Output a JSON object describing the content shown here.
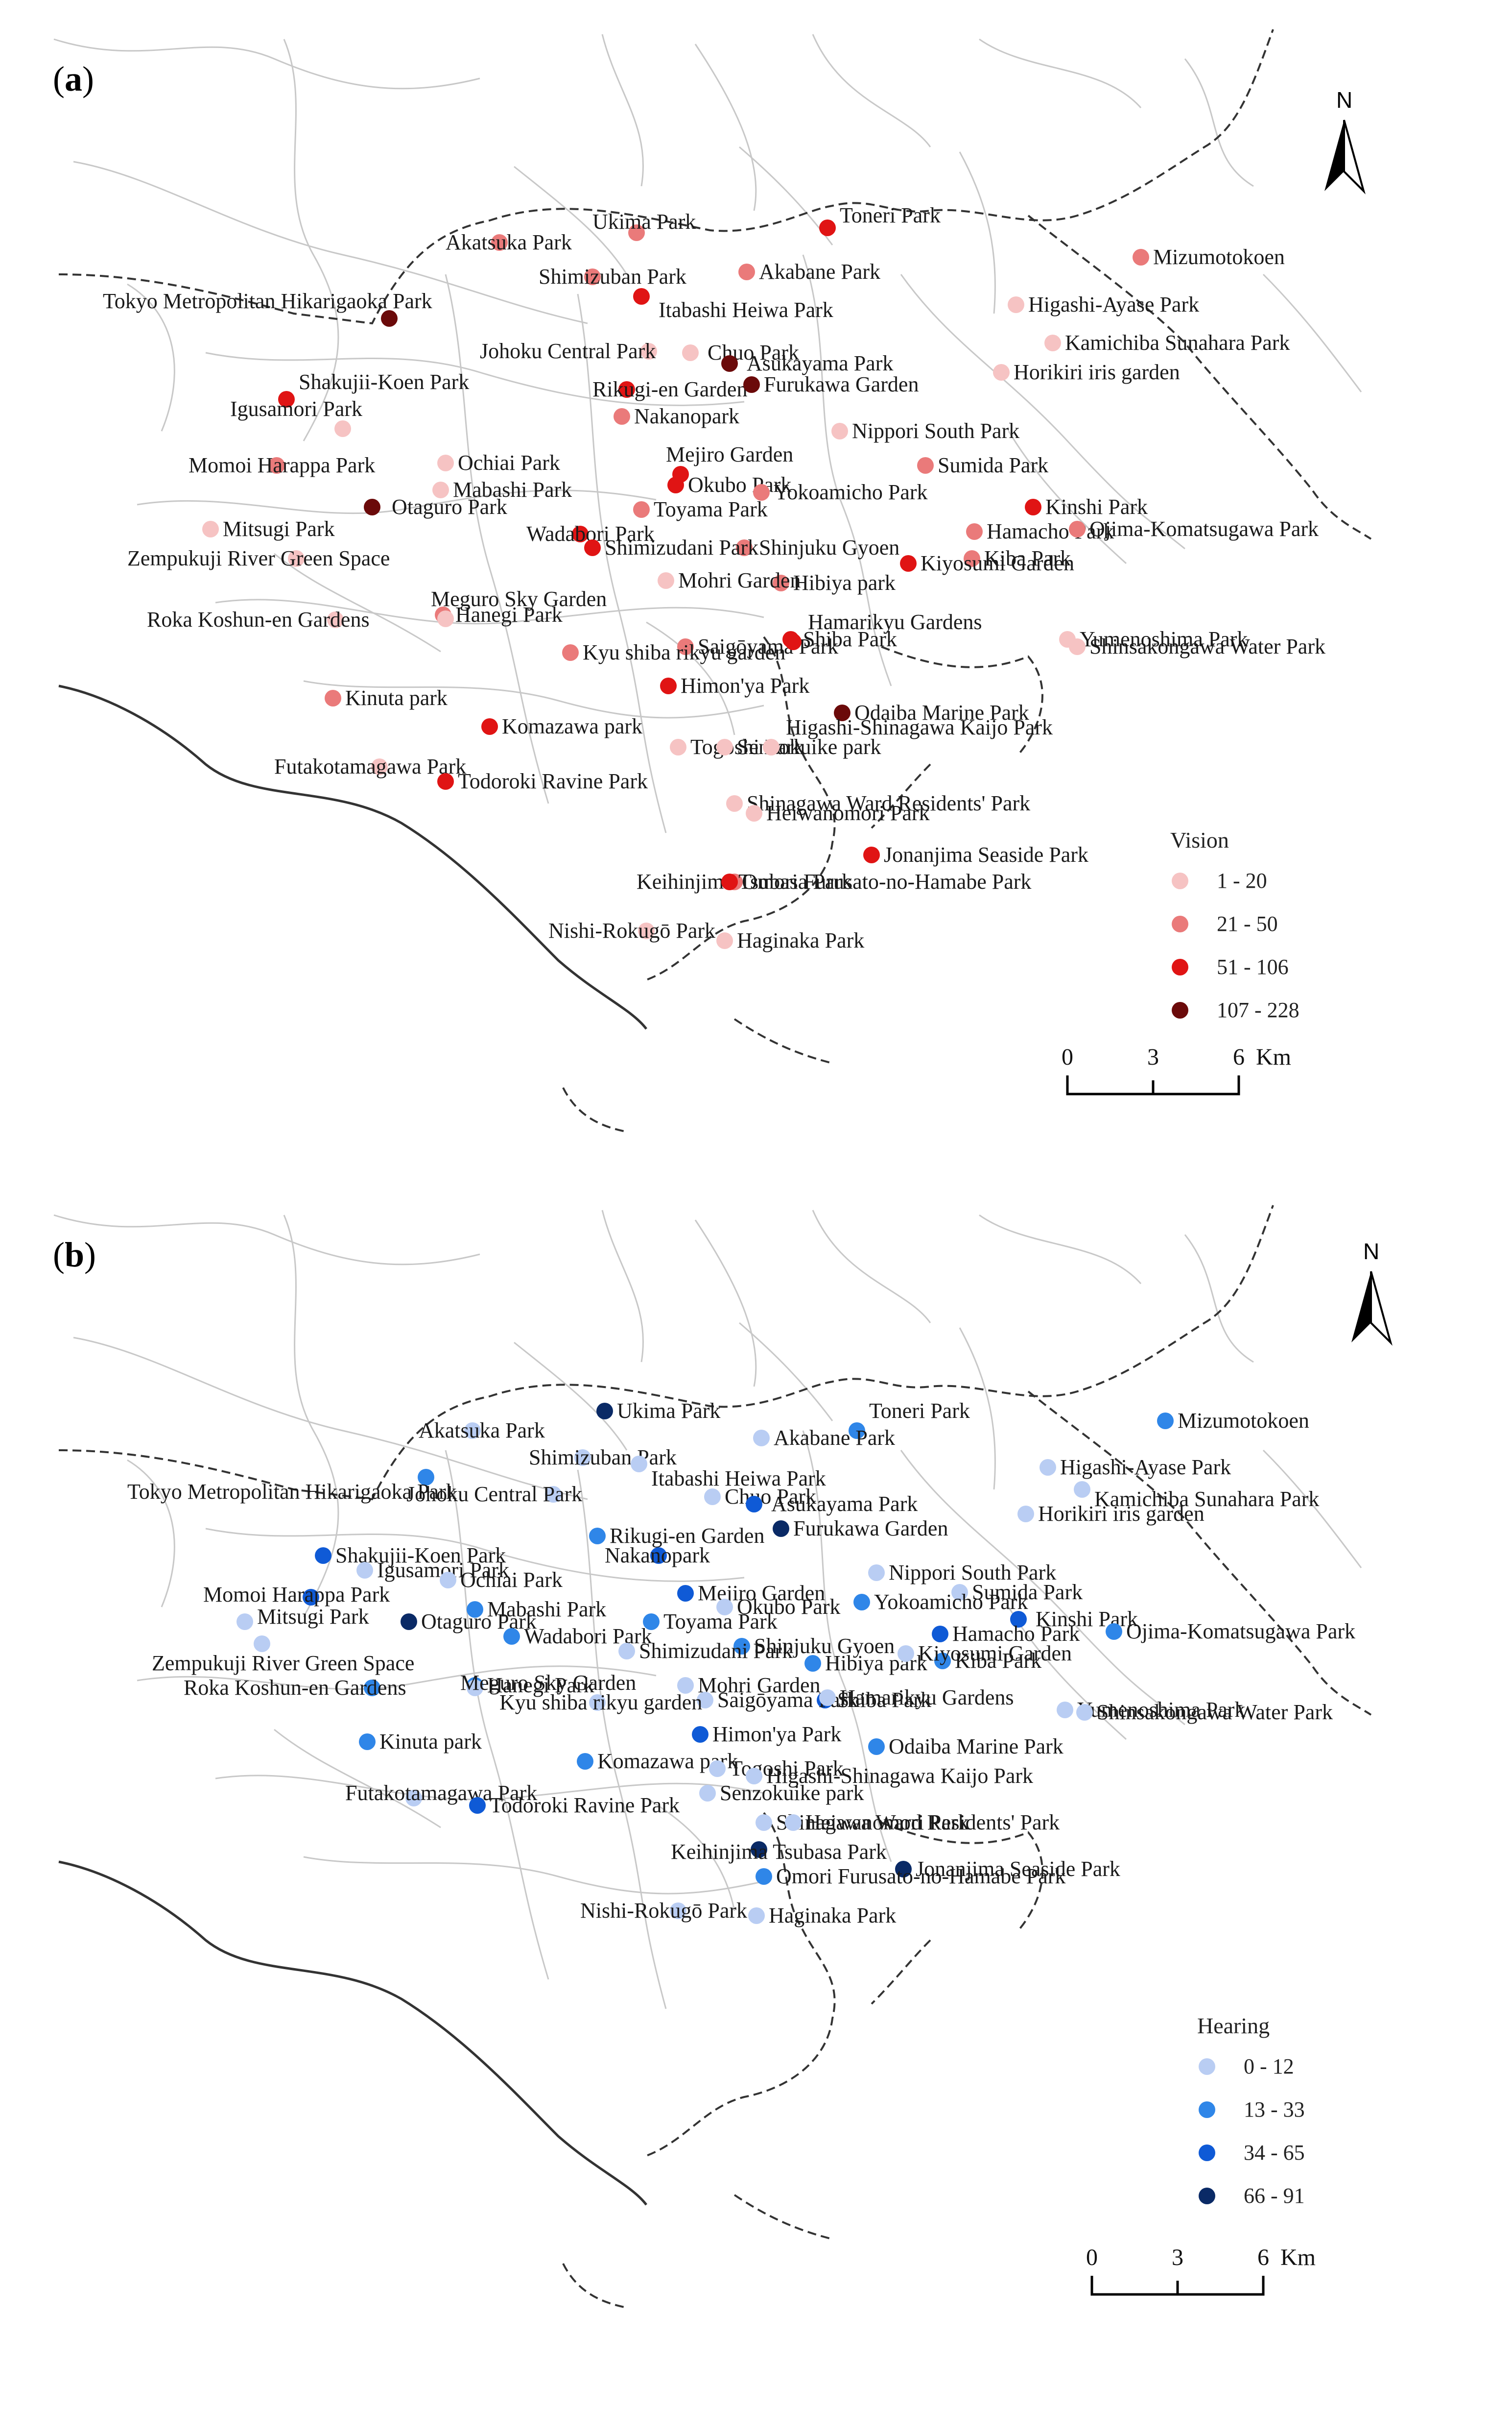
{
  "panels": [
    {
      "label_open": "(",
      "label_letter": "a",
      "label_close": ")",
      "legend_title": "Vision",
      "legend_classes": [
        "1 - 20",
        "21 - 50",
        "51 - 106",
        "107 - 228"
      ],
      "legend_colors": [
        "#f6c3c3",
        "#ea7a7a",
        "#e01414",
        "#6b0a0a"
      ],
      "scale_ticks": [
        "0",
        "3",
        "6"
      ],
      "scale_unit": "Km",
      "north": "N"
    },
    {
      "label_open": "(",
      "label_letter": "b",
      "label_close": ")",
      "legend_title": "Hearing",
      "legend_classes": [
        "0 - 12",
        "13 - 33",
        "34 - 65",
        "66 - 91"
      ],
      "legend_colors": [
        "#b9cdf3",
        "#2f86e8",
        "#0f5ad6",
        "#0a2a66"
      ],
      "scale_ticks": [
        "0",
        "3",
        "6"
      ],
      "scale_unit": "Km",
      "north": "N"
    }
  ],
  "parks": [
    {
      "name": "Ukima Park",
      "vision": 2,
      "hearing": 4
    },
    {
      "name": "Toneri Park",
      "vision": 3,
      "hearing": 2
    },
    {
      "name": "Akatsuka Park",
      "vision": 2,
      "hearing": 1
    },
    {
      "name": "Akabane Park",
      "vision": 2,
      "hearing": 1
    },
    {
      "name": "Mizumotokoen",
      "vision": 2,
      "hearing": 2
    },
    {
      "name": "Shimizuban Park",
      "vision": 2,
      "hearing": 1
    },
    {
      "name": "Tokyo Metropolitan Hikarigaoka Park",
      "vision": 4,
      "hearing": 2
    },
    {
      "name": "Itabashi Heiwa Park",
      "vision": 3,
      "hearing": 1
    },
    {
      "name": "Higashi-Ayase Park",
      "vision": 1,
      "hearing": 1
    },
    {
      "name": "Kamichiba Sunahara Park",
      "vision": 1,
      "hearing": 1
    },
    {
      "name": "Johoku Central Park",
      "vision": 1,
      "hearing": 1
    },
    {
      "name": "Chuo Park",
      "vision": 1,
      "hearing": 1
    },
    {
      "name": "Asukayama Park",
      "vision": 4,
      "hearing": 3
    },
    {
      "name": "Horikiri iris garden",
      "vision": 1,
      "hearing": 1
    },
    {
      "name": "Shakujii-Koen Park",
      "vision": 3,
      "hearing": 3
    },
    {
      "name": "Rikugi-en Garden",
      "vision": 3,
      "hearing": 2
    },
    {
      "name": "Furukawa Garden",
      "vision": 4,
      "hearing": 4
    },
    {
      "name": "Igusamori Park",
      "vision": 1,
      "hearing": 1
    },
    {
      "name": "Nippori South Park",
      "vision": 1,
      "hearing": 1
    },
    {
      "name": "Nakanopark",
      "vision": 2,
      "hearing": 3
    },
    {
      "name": "Momoi Harappa Park",
      "vision": 2,
      "hearing": 3
    },
    {
      "name": "Ochiai Park",
      "vision": 1,
      "hearing": 1
    },
    {
      "name": "Mejiro Garden",
      "vision": 3,
      "hearing": 3
    },
    {
      "name": "Sumida Park",
      "vision": 2,
      "hearing": 1
    },
    {
      "name": "Mabashi Park",
      "vision": 1,
      "hearing": 2
    },
    {
      "name": "Okubo Park",
      "vision": 3,
      "hearing": 1
    },
    {
      "name": "Yokoamicho Park",
      "vision": 2,
      "hearing": 2
    },
    {
      "name": "Kinshi Park",
      "vision": 3,
      "hearing": 3
    },
    {
      "name": "Mitsugi Park",
      "vision": 1,
      "hearing": 1
    },
    {
      "name": "Otaguro Park",
      "vision": 4,
      "hearing": 4
    },
    {
      "name": "Toyama Park",
      "vision": 2,
      "hearing": 2
    },
    {
      "name": "Hamacho Park",
      "vision": 2,
      "hearing": 3
    },
    {
      "name": "Ojima-Komatsugawa Park",
      "vision": 2,
      "hearing": 2
    },
    {
      "name": "Wadabori Park",
      "vision": 3,
      "hearing": 2
    },
    {
      "name": "Shinjuku Gyoen",
      "vision": 2,
      "hearing": 2
    },
    {
      "name": "Zempukuji River Green Space",
      "vision": 1,
      "hearing": 1
    },
    {
      "name": "Shimizudani Park",
      "vision": 3,
      "hearing": 1
    },
    {
      "name": "Hibiya park",
      "vision": 2,
      "hearing": 2
    },
    {
      "name": "Kiba Park",
      "vision": 2,
      "hearing": 2
    },
    {
      "name": "Kiyosumi Garden",
      "vision": 3,
      "hearing": 1
    },
    {
      "name": "Roka Koshun-en Gardens",
      "vision": 1,
      "hearing": 2
    },
    {
      "name": "Hanegi Park",
      "vision": 2,
      "hearing": 2
    },
    {
      "name": "Mohri Garden",
      "vision": 1,
      "hearing": 1
    },
    {
      "name": "Shiba Park",
      "vision": 3,
      "hearing": 3
    },
    {
      "name": "Meguro Sky Garden",
      "vision": 1,
      "hearing": 1
    },
    {
      "name": "Saigōyama Park",
      "vision": 2,
      "hearing": 1
    },
    {
      "name": "Yumenoshima Park",
      "vision": 1,
      "hearing": 1
    },
    {
      "name": "Hamarikyu Gardens",
      "vision": 3,
      "hearing": 1
    },
    {
      "name": "Kyu shiba rikyu garden",
      "vision": 2,
      "hearing": 1
    },
    {
      "name": "Shinsakongawa Water Park",
      "vision": 1,
      "hearing": 1
    },
    {
      "name": "Kinuta park",
      "vision": 2,
      "hearing": 2
    },
    {
      "name": "Himon'ya Park",
      "vision": 3,
      "hearing": 3
    },
    {
      "name": "Odaiba Marine Park",
      "vision": 4,
      "hearing": 2
    },
    {
      "name": "Komazawa park",
      "vision": 3,
      "hearing": 2
    },
    {
      "name": "Futakotamagawa Park",
      "vision": 1,
      "hearing": 1
    },
    {
      "name": "Togoshi Park",
      "vision": 1,
      "hearing": 1
    },
    {
      "name": "Senzokuike park",
      "vision": 1,
      "hearing": 1
    },
    {
      "name": "Higashi-Shinagawa Kaijo Park",
      "vision": 1,
      "hearing": 1
    },
    {
      "name": "Todoroki Ravine Park",
      "vision": 3,
      "hearing": 3
    },
    {
      "name": "Shinagawa Ward Residents' Park",
      "vision": 1,
      "hearing": 1
    },
    {
      "name": "Heiwanomori Park",
      "vision": 1,
      "hearing": 1
    },
    {
      "name": "Keihinjima Tsubasa Park",
      "vision": 2,
      "hearing": 4
    },
    {
      "name": "Jonanjima Seaside Park",
      "vision": 3,
      "hearing": 4
    },
    {
      "name": "Omori Furusato-no-Hamabe Park",
      "vision": 3,
      "hearing": 2
    },
    {
      "name": "Nishi-Rokugō Park",
      "vision": 1,
      "hearing": 1
    },
    {
      "name": "Haginaka Park",
      "vision": 1,
      "hearing": 1
    }
  ]
}
